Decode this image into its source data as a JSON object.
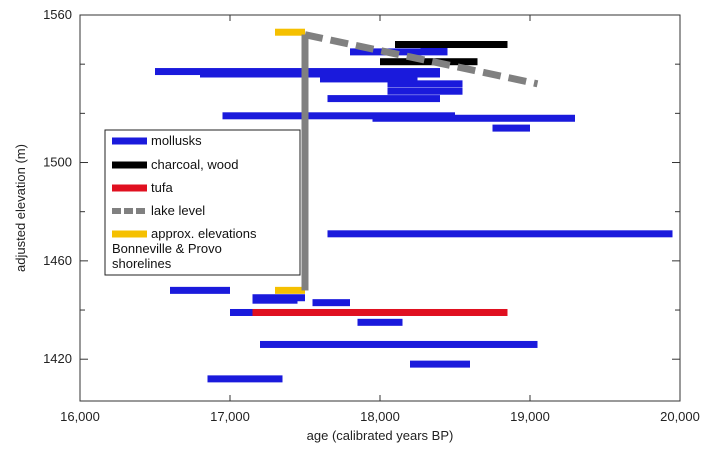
{
  "chart_data": {
    "type": "range-bar",
    "xlabel": "age (calibrated years BP)",
    "ylabel": "adjusted elevation (m)",
    "xlim": [
      16000,
      20000
    ],
    "ylim": [
      1403,
      1560
    ],
    "x_ticks": [
      "16,000",
      "17,000",
      "18,000",
      "19,000",
      "20,000"
    ],
    "x_tick_values": [
      16000,
      17000,
      18000,
      19000,
      20000
    ],
    "y_ticks": [
      "1420",
      "1460",
      "1500",
      "1560"
    ],
    "y_tick_values": [
      1420,
      1460,
      1500,
      1560
    ],
    "y_minor_ticks": [
      1440,
      1480,
      1520,
      1540
    ],
    "legend": {
      "placement": "center-left",
      "entries": [
        {
          "label": "mollusks",
          "color": "#1a1adc"
        },
        {
          "label": "charcoal, wood",
          "color": "#000000"
        },
        {
          "label": "tufa",
          "color": "#e01020"
        },
        {
          "label": "lake level",
          "color": "#808080",
          "dashed": true
        },
        {
          "label": "approx. elevations\nBonneville & Provo\nshorelines",
          "color": "#f5c000"
        }
      ]
    },
    "series": [
      {
        "name": "mollusks",
        "color": "#1a1adc",
        "ranges": [
          {
            "x0": 18270,
            "x1": 18450,
            "y": 1546
          },
          {
            "x0": 17800,
            "x1": 18450,
            "y": 1545
          },
          {
            "x0": 16500,
            "x1": 18400,
            "y": 1537
          },
          {
            "x0": 16800,
            "x1": 18400,
            "y": 1536
          },
          {
            "x0": 17600,
            "x1": 18250,
            "y": 1534
          },
          {
            "x0": 18050,
            "x1": 18550,
            "y": 1532
          },
          {
            "x0": 18050,
            "x1": 18550,
            "y": 1529
          },
          {
            "x0": 17650,
            "x1": 18400,
            "y": 1526
          },
          {
            "x0": 16950,
            "x1": 18500,
            "y": 1519
          },
          {
            "x0": 17950,
            "x1": 19300,
            "y": 1518
          },
          {
            "x0": 18750,
            "x1": 19000,
            "y": 1514
          },
          {
            "x0": 17650,
            "x1": 19950,
            "y": 1471
          },
          {
            "x0": 16600,
            "x1": 17000,
            "y": 1448
          },
          {
            "x0": 17150,
            "x1": 17500,
            "y": 1445
          },
          {
            "x0": 17150,
            "x1": 17450,
            "y": 1444
          },
          {
            "x0": 17550,
            "x1": 17800,
            "y": 1443
          },
          {
            "x0": 17000,
            "x1": 17600,
            "y": 1439
          },
          {
            "x0": 17850,
            "x1": 18150,
            "y": 1435
          },
          {
            "x0": 17200,
            "x1": 19050,
            "y": 1426
          },
          {
            "x0": 18200,
            "x1": 18600,
            "y": 1418
          },
          {
            "x0": 16850,
            "x1": 17350,
            "y": 1412
          }
        ]
      },
      {
        "name": "charcoal, wood",
        "color": "#000000",
        "ranges": [
          {
            "x0": 18100,
            "x1": 18850,
            "y": 1548
          },
          {
            "x0": 18000,
            "x1": 18650,
            "y": 1541
          }
        ]
      },
      {
        "name": "tufa",
        "color": "#e01020",
        "ranges": [
          {
            "x0": 17150,
            "x1": 18850,
            "y": 1439
          }
        ]
      },
      {
        "name": "lake level",
        "color": "#808080",
        "dashed": true,
        "points": [
          [
            17500,
            1552
          ],
          [
            17500,
            1448
          ],
          [
            17500,
            1552
          ],
          [
            19050,
            1532
          ]
        ]
      },
      {
        "name": "approx. elevations Bonneville & Provo shorelines",
        "color": "#f5c000",
        "ranges": [
          {
            "x0": 17300,
            "x1": 17500,
            "y": 1553
          },
          {
            "x0": 17300,
            "x1": 17500,
            "y": 1448
          }
        ]
      }
    ]
  }
}
